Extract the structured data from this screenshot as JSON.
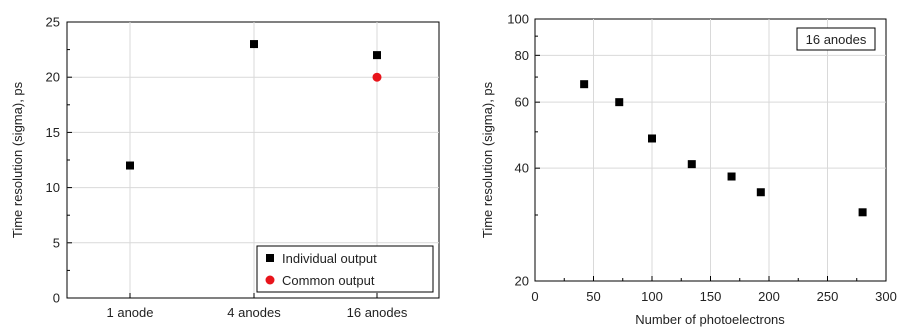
{
  "chart_data": [
    {
      "type": "scatter",
      "xlabel": "",
      "ylabel": "Time resolution (sigma), ps",
      "categories": [
        "1 anode",
        "4 anodes",
        "16 anodes"
      ],
      "ylim": [
        0,
        25
      ],
      "yticks": [
        "0",
        "5",
        "10",
        "15",
        "20",
        "25"
      ],
      "grid": true,
      "legend_position": "bottom-right",
      "series": [
        {
          "name": "Individual output",
          "marker": "square",
          "color": "#000000",
          "values": [
            12,
            23,
            22
          ]
        },
        {
          "name": "Common output",
          "marker": "circle",
          "color": "#e8141b",
          "values": [
            null,
            null,
            20
          ]
        }
      ]
    },
    {
      "type": "scatter",
      "xlabel": "Number of photoelectrons",
      "ylabel": "Time resolution (sigma), ps",
      "xlim": [
        0,
        300
      ],
      "ylim": [
        20,
        100
      ],
      "yscale": "log",
      "xticks": [
        "0",
        "50",
        "100",
        "150",
        "200",
        "250",
        "300"
      ],
      "yticks": [
        "20",
        "40",
        "60",
        "80",
        "100"
      ],
      "grid": true,
      "annotation": "16 anodes",
      "series": [
        {
          "marker": "square",
          "color": "#000000",
          "points": [
            [
              42,
              67
            ],
            [
              72,
              60
            ],
            [
              100,
              48
            ],
            [
              134,
              41
            ],
            [
              168,
              38
            ],
            [
              193,
              34.5
            ],
            [
              280,
              30.5
            ]
          ]
        }
      ]
    }
  ]
}
